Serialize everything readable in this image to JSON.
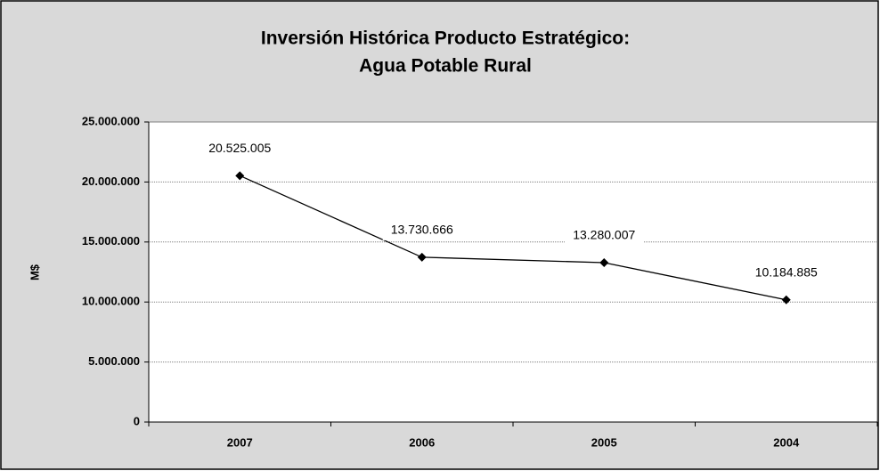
{
  "chart_data": {
    "type": "line",
    "title": [
      "Inversión Histórica Producto Estratégico:",
      "Agua Potable Rural"
    ],
    "y_label": "M$",
    "categories": [
      "2007",
      "2006",
      "2005",
      "2004"
    ],
    "series": [
      {
        "color": "#000000",
        "values": [
          20525005,
          13730666,
          13280007,
          10184885
        ],
        "value_labels": [
          "20.525.005",
          "13.730.666",
          "13.280.007",
          "10.184.885"
        ]
      }
    ],
    "ylim": [
      0,
      25000000
    ],
    "yticks": [
      0,
      {
        "value": 5000000,
        "label": "5.000.000"
      },
      {
        "value": 10000000,
        "label": "10.000.000"
      },
      {
        "value": 15000000,
        "label": "15.000.000"
      },
      {
        "value": 20000000,
        "label": "20.000.000"
      },
      {
        "value": 25000000,
        "label": "25.000.000"
      }
    ],
    "grid": true
  }
}
